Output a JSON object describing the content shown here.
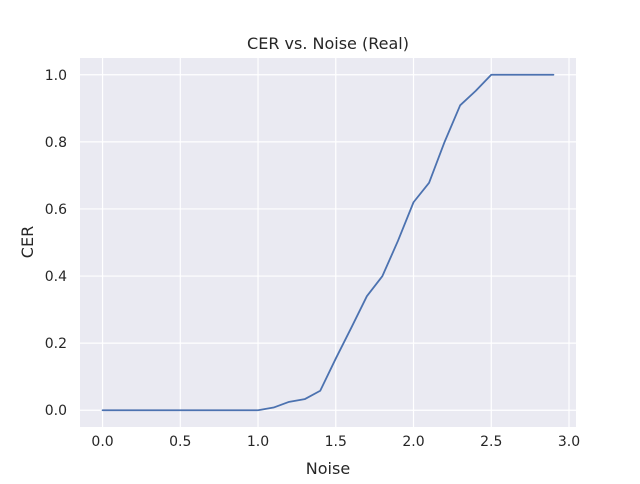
{
  "chart_data": {
    "type": "line",
    "title": "CER vs. Noise (Real)",
    "xlabel": "Noise",
    "ylabel": "CER",
    "xlim": [
      -0.145,
      3.045
    ],
    "ylim": [
      -0.05,
      1.05
    ],
    "xticks": [
      0.0,
      0.5,
      1.0,
      1.5,
      2.0,
      2.5,
      3.0
    ],
    "xtick_labels": [
      "0.0",
      "0.5",
      "1.0",
      "1.5",
      "2.0",
      "2.5",
      "3.0"
    ],
    "yticks": [
      0.0,
      0.2,
      0.4,
      0.6,
      0.8,
      1.0
    ],
    "ytick_labels": [
      "0.0",
      "0.2",
      "0.4",
      "0.6",
      "0.8",
      "1.0"
    ],
    "grid": true,
    "background": "#eaeaf2",
    "grid_color": "#ffffff",
    "line_color": "#4c72b0",
    "series": [
      {
        "x": [
          0.0,
          0.1,
          0.2,
          0.3,
          0.4,
          0.5,
          0.6,
          0.7,
          0.8,
          0.9,
          1.0,
          1.1,
          1.2,
          1.3,
          1.4,
          1.5,
          1.6,
          1.7,
          1.8,
          1.9,
          2.0,
          2.1,
          2.2,
          2.3,
          2.4,
          2.5,
          2.6,
          2.7,
          2.8,
          2.9
        ],
        "values": [
          0.0,
          0.0,
          0.0,
          0.0,
          0.0,
          0.0,
          0.0,
          0.0,
          0.0,
          0.0,
          0.0,
          0.008,
          0.025,
          0.033,
          0.058,
          0.154,
          0.246,
          0.34,
          0.4,
          0.505,
          0.62,
          0.678,
          0.8,
          0.909,
          0.952,
          1.0,
          1.0,
          1.0,
          1.0,
          1.0
        ]
      }
    ]
  }
}
